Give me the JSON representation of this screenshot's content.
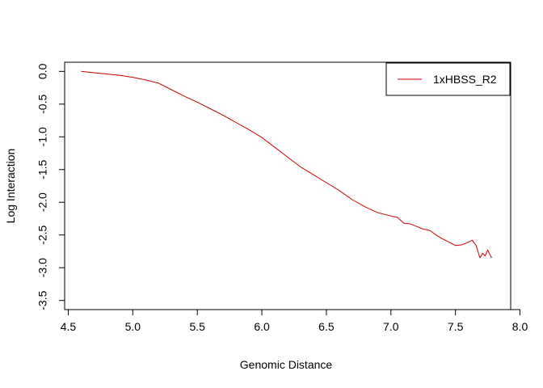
{
  "chart_data": {
    "type": "line",
    "title": "",
    "xlabel": "Genomic Distance",
    "ylabel": "Log Interaction",
    "xlim": [
      4.6,
      7.8
    ],
    "ylim": [
      -3.5,
      0.0
    ],
    "x_ticks": [
      4.5,
      5.0,
      5.5,
      6.0,
      6.5,
      7.0,
      7.5,
      8.0
    ],
    "x_tick_labels": [
      "4.5",
      "5.0",
      "5.5",
      "6.0",
      "6.5",
      "7.0",
      "7.5",
      "8.0"
    ],
    "y_ticks": [
      0.0,
      -0.5,
      -1.0,
      -1.5,
      -2.0,
      -2.5,
      -3.0,
      -3.5
    ],
    "y_tick_labels": [
      "0.0",
      "-0.5",
      "-1.0",
      "-1.5",
      "-2.0",
      "-2.5",
      "-3.0",
      "-3.5"
    ],
    "grid": false,
    "legend_position": "top-right",
    "series": [
      {
        "name": "1xHBSS_R2",
        "color": "#cc0000",
        "points": [
          [
            4.6,
            0.0
          ],
          [
            4.7,
            -0.02
          ],
          [
            4.8,
            -0.04
          ],
          [
            4.9,
            -0.06
          ],
          [
            5.0,
            -0.09
          ],
          [
            5.1,
            -0.13
          ],
          [
            5.2,
            -0.18
          ],
          [
            5.3,
            -0.28
          ],
          [
            5.4,
            -0.38
          ],
          [
            5.5,
            -0.47
          ],
          [
            5.6,
            -0.57
          ],
          [
            5.7,
            -0.67
          ],
          [
            5.8,
            -0.78
          ],
          [
            5.9,
            -0.89
          ],
          [
            6.0,
            -1.01
          ],
          [
            6.1,
            -1.16
          ],
          [
            6.2,
            -1.31
          ],
          [
            6.3,
            -1.46
          ],
          [
            6.4,
            -1.58
          ],
          [
            6.5,
            -1.7
          ],
          [
            6.6,
            -1.82
          ],
          [
            6.7,
            -1.96
          ],
          [
            6.8,
            -2.07
          ],
          [
            6.9,
            -2.16
          ],
          [
            7.0,
            -2.21
          ],
          [
            7.05,
            -2.23
          ],
          [
            7.1,
            -2.32
          ],
          [
            7.15,
            -2.33
          ],
          [
            7.2,
            -2.37
          ],
          [
            7.25,
            -2.41
          ],
          [
            7.3,
            -2.43
          ],
          [
            7.35,
            -2.5
          ],
          [
            7.4,
            -2.56
          ],
          [
            7.45,
            -2.61
          ],
          [
            7.5,
            -2.66
          ],
          [
            7.55,
            -2.65
          ],
          [
            7.6,
            -2.61
          ],
          [
            7.63,
            -2.58
          ],
          [
            7.66,
            -2.66
          ],
          [
            7.69,
            -2.85
          ],
          [
            7.71,
            -2.78
          ],
          [
            7.73,
            -2.82
          ],
          [
            7.75,
            -2.73
          ],
          [
            7.78,
            -2.85
          ]
        ]
      }
    ]
  }
}
